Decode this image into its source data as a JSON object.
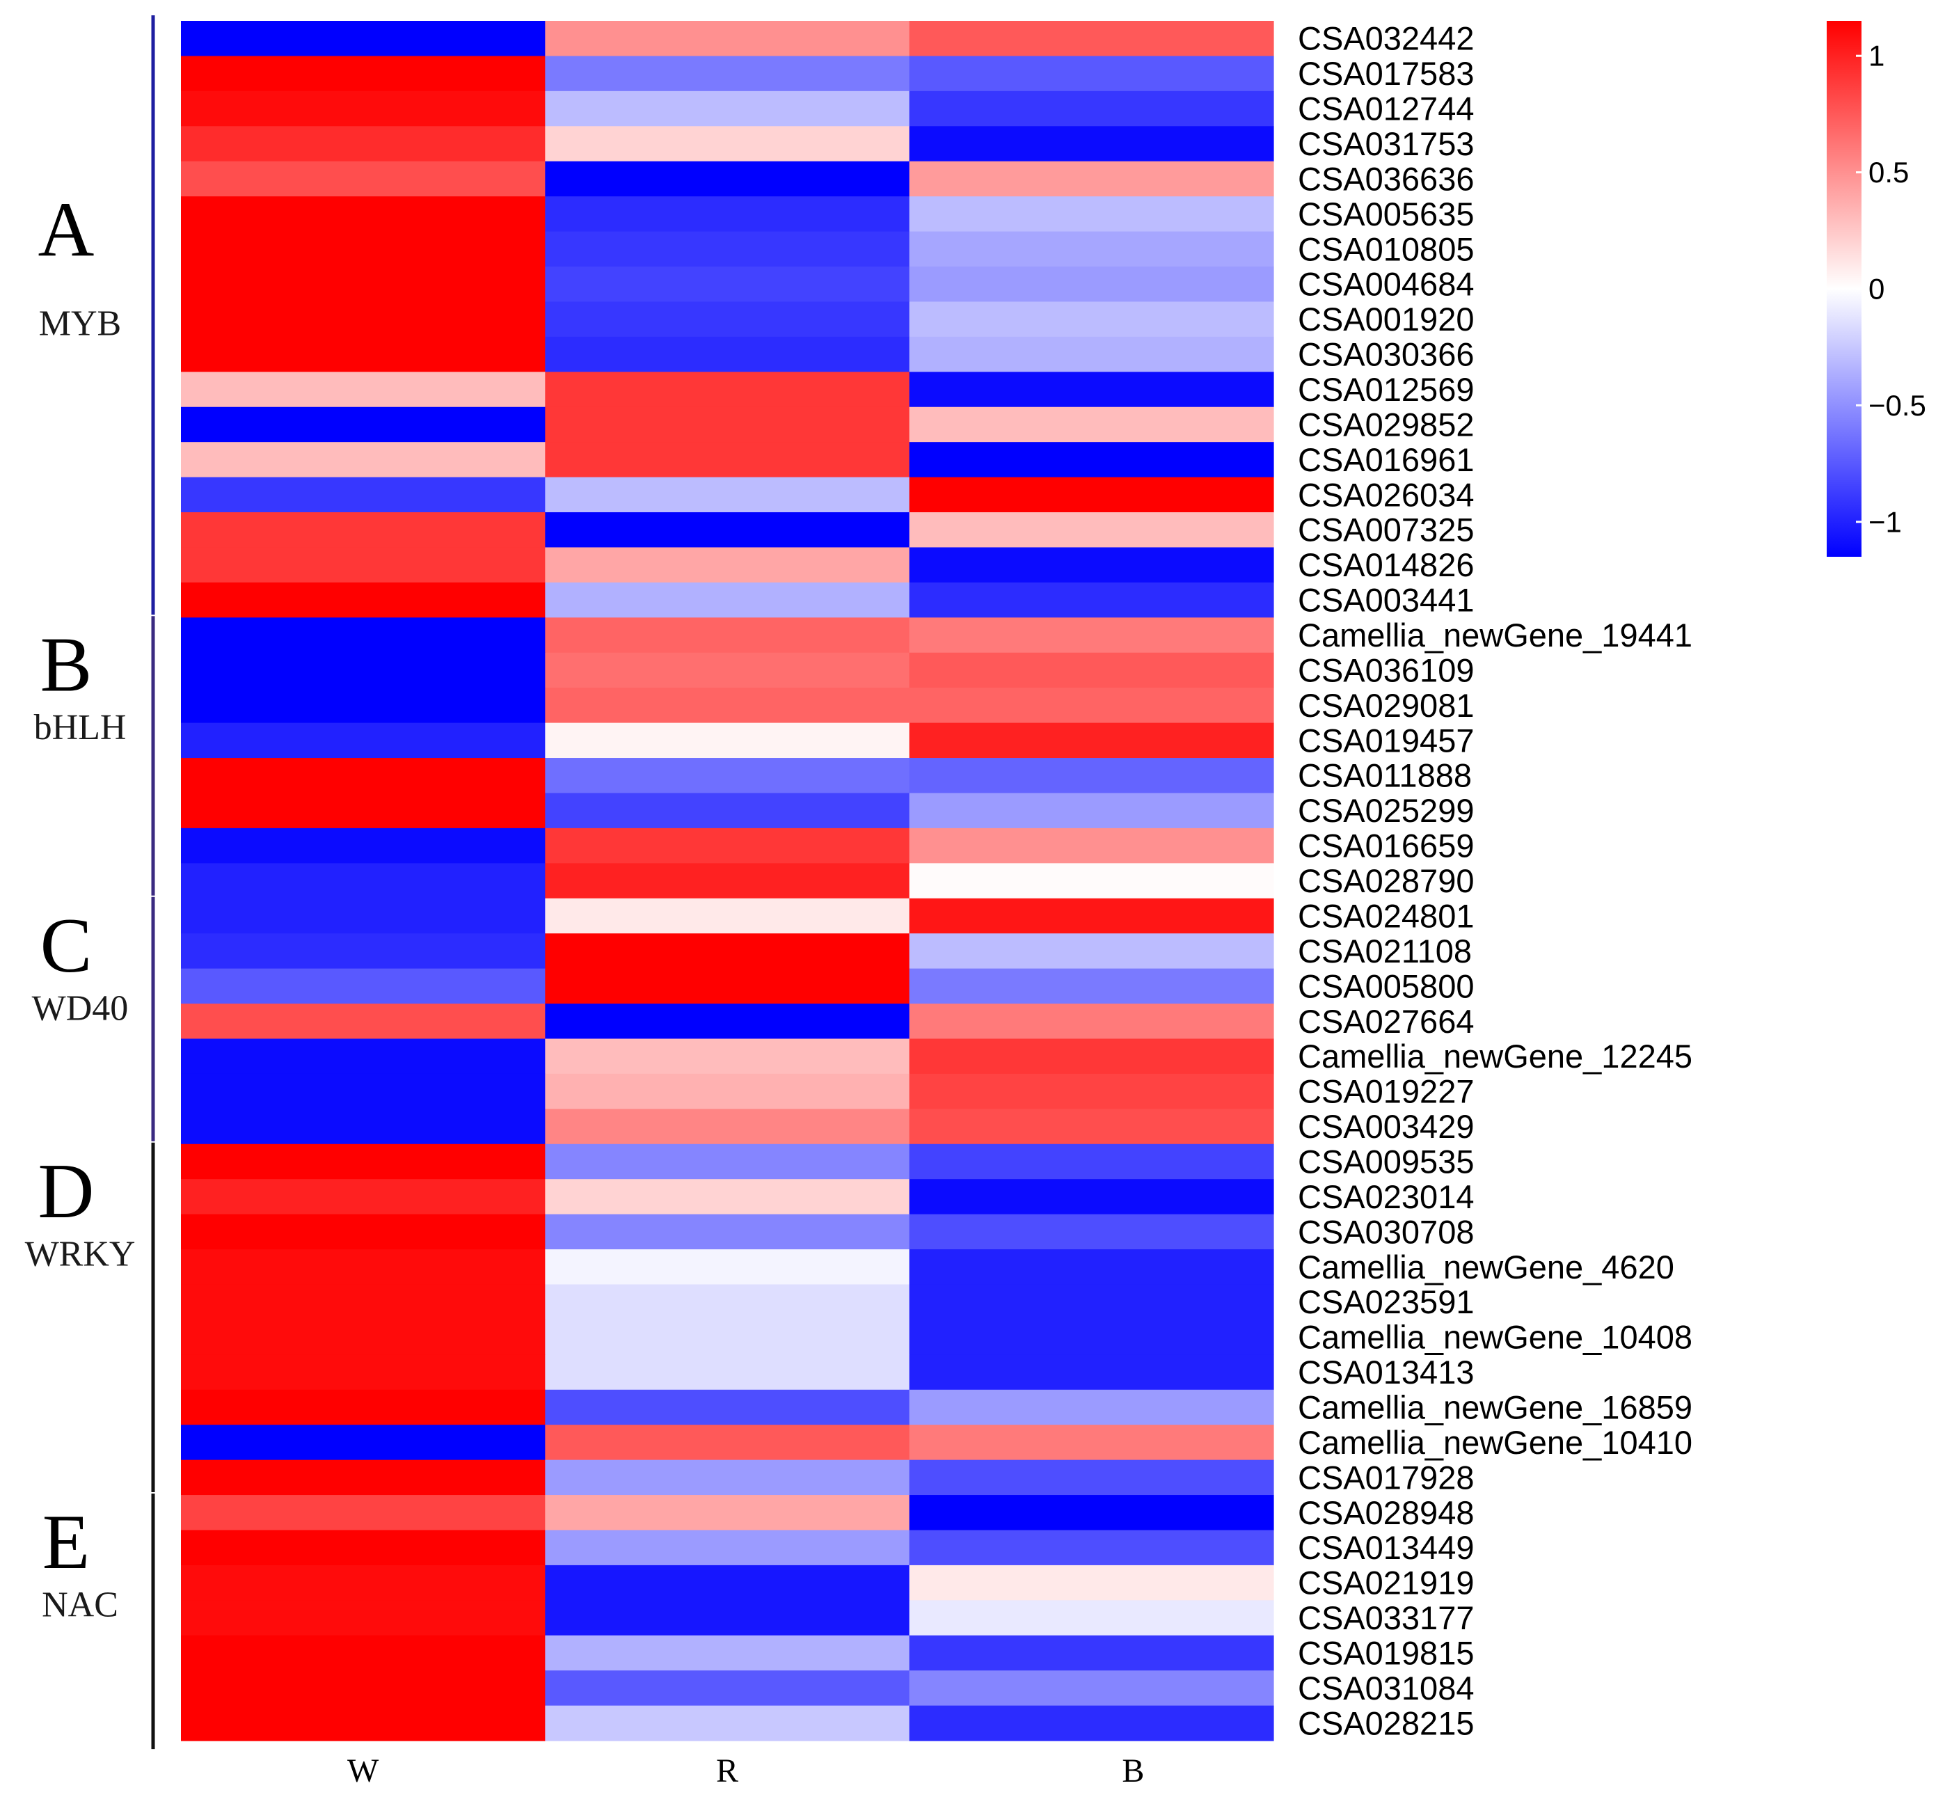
{
  "chart_data": {
    "type": "heatmap",
    "title": "",
    "columns": [
      "W",
      "R",
      "B"
    ],
    "rows": [
      "CSA032442",
      "CSA017583",
      "CSA012744",
      "CSA031753",
      "CSA036636",
      "CSA005635",
      "CSA010805",
      "CSA004684",
      "CSA001920",
      "CSA030366",
      "CSA012569",
      "CSA029852",
      "CSA016961",
      "CSA026034",
      "CSA007325",
      "CSA014826",
      "CSA003441",
      "Camellia_newGene_19441",
      "CSA036109",
      "CSA029081",
      "CSA019457",
      "CSA011888",
      "CSA025299",
      "CSA016659",
      "CSA028790",
      "CSA024801",
      "CSA021108",
      "CSA005800",
      "CSA027664",
      "Camellia_newGene_12245",
      "CSA019227",
      "CSA003429",
      "CSA009535",
      "CSA023014",
      "CSA030708",
      "Camellia_newGene_4620",
      "CSA023591",
      "Camellia_newGene_10408",
      "CSA013413",
      "Camellia_newGene_16859",
      "Camellia_newGene_10410",
      "CSA017928",
      "CSA028948",
      "CSA013449",
      "CSA021919",
      "CSA033177",
      "CSA019815",
      "CSA031084",
      "CSA028215"
    ],
    "values": [
      [
        -1.15,
        0.5,
        0.75
      ],
      [
        1.15,
        -0.6,
        -0.75
      ],
      [
        1.1,
        -0.3,
        -0.9
      ],
      [
        0.95,
        0.2,
        -1.1
      ],
      [
        0.8,
        -1.15,
        0.45
      ],
      [
        1.15,
        -0.95,
        -0.3
      ],
      [
        1.15,
        -0.9,
        -0.4
      ],
      [
        1.15,
        -0.85,
        -0.45
      ],
      [
        1.15,
        -0.9,
        -0.3
      ],
      [
        1.15,
        -0.95,
        -0.35
      ],
      [
        0.3,
        0.9,
        -1.1
      ],
      [
        -1.15,
        0.9,
        0.3
      ],
      [
        0.3,
        0.9,
        -1.15
      ],
      [
        -0.9,
        -0.3,
        1.15
      ],
      [
        0.9,
        -1.15,
        0.3
      ],
      [
        0.9,
        0.4,
        -1.1
      ],
      [
        1.15,
        -0.35,
        -0.95
      ],
      [
        -1.15,
        0.7,
        0.6
      ],
      [
        -1.15,
        0.65,
        0.75
      ],
      [
        -1.15,
        0.7,
        0.7
      ],
      [
        -1.0,
        0.05,
        1.0
      ],
      [
        1.15,
        -0.65,
        -0.7
      ],
      [
        1.15,
        -0.85,
        -0.45
      ],
      [
        -1.1,
        0.9,
        0.5
      ],
      [
        -1.0,
        1.0,
        0.02
      ],
      [
        -1.0,
        0.1,
        1.05
      ],
      [
        -0.95,
        1.15,
        -0.3
      ],
      [
        -0.75,
        1.15,
        -0.6
      ],
      [
        0.8,
        -1.15,
        0.6
      ],
      [
        -1.1,
        0.3,
        0.9
      ],
      [
        -1.1,
        0.35,
        0.85
      ],
      [
        -1.1,
        0.55,
        0.8
      ],
      [
        1.15,
        -0.55,
        -0.85
      ],
      [
        1.0,
        0.2,
        -1.1
      ],
      [
        1.15,
        -0.55,
        -0.8
      ],
      [
        1.1,
        -0.05,
        -1.0
      ],
      [
        1.1,
        -0.15,
        -1.0
      ],
      [
        1.1,
        -0.15,
        -1.0
      ],
      [
        1.1,
        -0.15,
        -1.0
      ],
      [
        1.15,
        -0.8,
        -0.45
      ],
      [
        -1.15,
        0.75,
        0.6
      ],
      [
        1.15,
        -0.45,
        -0.8
      ],
      [
        0.85,
        0.4,
        -1.15
      ],
      [
        1.15,
        -0.45,
        -0.8
      ],
      [
        1.1,
        -1.05,
        0.1
      ],
      [
        1.1,
        -1.05,
        -0.1
      ],
      [
        1.15,
        -0.35,
        -0.9
      ],
      [
        1.15,
        -0.75,
        -0.55
      ],
      [
        1.15,
        -0.25,
        -0.95
      ]
    ],
    "groups": [
      {
        "letter": "A",
        "name": "MYB",
        "start": 0,
        "end": 16
      },
      {
        "letter": "B",
        "name": "bHLH",
        "start": 17,
        "end": 24
      },
      {
        "letter": "C",
        "name": "WD40",
        "start": 25,
        "end": 31
      },
      {
        "letter": "D",
        "name": "WRKY",
        "start": 32,
        "end": 41
      },
      {
        "letter": "E",
        "name": "NAC",
        "start": 42,
        "end": 48
      }
    ],
    "colorbar": {
      "min": -1.15,
      "max": 1.15,
      "ticks": [
        1,
        0.5,
        0,
        -0.5,
        -1
      ],
      "tick_labels": [
        "1",
        "0.5",
        "0",
        "−0.5",
        "−1"
      ],
      "low_color": "#0000ff",
      "mid_color": "#ffffff",
      "high_color": "#ff0000"
    },
    "xlabel": "",
    "ylabel": ""
  }
}
